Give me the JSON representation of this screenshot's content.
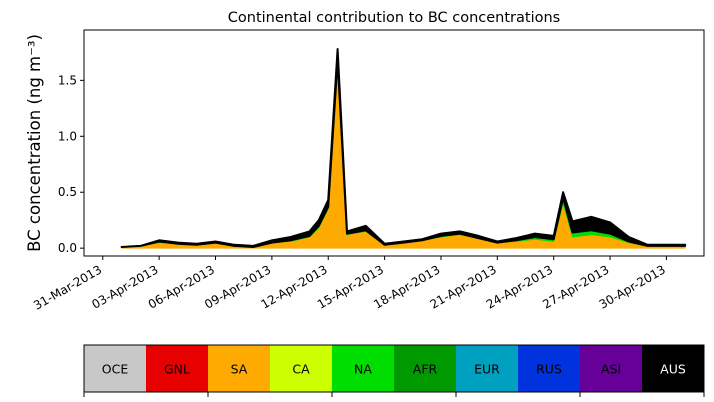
{
  "chart_data": {
    "type": "area",
    "title": "Continental contribution to BC concentrations",
    "ylabel": "BC concentration (ng m⁻³)",
    "xlabel": "",
    "x_range": [
      "2013-03-30",
      "2013-05-02"
    ],
    "ylim": [
      -0.07,
      1.95
    ],
    "y_ticks": [
      0.0,
      0.5,
      1.0,
      1.5
    ],
    "y_tick_labels": [
      "0.0",
      "0.5",
      "1.0",
      "1.5"
    ],
    "x_ticks": [
      "2013-03-31",
      "2013-04-03",
      "2013-04-06",
      "2013-04-09",
      "2013-04-12",
      "2013-04-15",
      "2013-04-18",
      "2013-04-21",
      "2013-04-24",
      "2013-04-27",
      "2013-04-30"
    ],
    "x_tick_labels": [
      "31-Mar-2013",
      "03-Apr-2013",
      "06-Apr-2013",
      "09-Apr-2013",
      "12-Apr-2013",
      "15-Apr-2013",
      "18-Apr-2013",
      "21-Apr-2013",
      "24-Apr-2013",
      "27-Apr-2013",
      "30-Apr-2013"
    ],
    "x": [
      "2013-04-01",
      "2013-04-02",
      "2013-04-03",
      "2013-04-04",
      "2013-04-05",
      "2013-04-06",
      "2013-04-07",
      "2013-04-08",
      "2013-04-09",
      "2013-04-10",
      "2013-04-11",
      "2013-04-11 12:00",
      "2013-04-12",
      "2013-04-12 12:00",
      "2013-04-13",
      "2013-04-14",
      "2013-04-15",
      "2013-04-16",
      "2013-04-17",
      "2013-04-18",
      "2013-04-19",
      "2013-04-20",
      "2013-04-21",
      "2013-04-22",
      "2013-04-23",
      "2013-04-24",
      "2013-04-24 12:00",
      "2013-04-25",
      "2013-04-26",
      "2013-04-27",
      "2013-04-28",
      "2013-04-29",
      "2013-04-30",
      "2013-05-01"
    ],
    "series": [
      {
        "name": "SA",
        "color": "#ffaa00",
        "values": [
          0.01,
          0.02,
          0.05,
          0.04,
          0.03,
          0.05,
          0.02,
          0.01,
          0.05,
          0.06,
          0.1,
          0.18,
          0.35,
          1.65,
          0.12,
          0.15,
          0.03,
          0.05,
          0.07,
          0.1,
          0.12,
          0.09,
          0.05,
          0.06,
          0.08,
          0.06,
          0.4,
          0.1,
          0.12,
          0.1,
          0.05,
          0.02,
          0.02,
          0.02
        ]
      },
      {
        "name": "NA",
        "color": "#00dd00",
        "values": [
          0.0,
          0.0,
          0.01,
          0.0,
          0.0,
          0.0,
          0.0,
          0.0,
          0.0,
          0.01,
          0.01,
          0.02,
          0.02,
          0.03,
          0.01,
          0.01,
          0.0,
          0.0,
          0.0,
          0.01,
          0.01,
          0.0,
          0.0,
          0.01,
          0.02,
          0.02,
          0.05,
          0.04,
          0.04,
          0.03,
          0.01,
          0.0,
          0.0,
          0.0
        ]
      },
      {
        "name": "AUS",
        "color": "#000000",
        "values": [
          0.0,
          0.0,
          0.01,
          0.01,
          0.01,
          0.01,
          0.01,
          0.01,
          0.02,
          0.03,
          0.04,
          0.05,
          0.06,
          0.1,
          0.02,
          0.04,
          0.01,
          0.01,
          0.01,
          0.02,
          0.02,
          0.02,
          0.01,
          0.02,
          0.03,
          0.03,
          0.05,
          0.1,
          0.12,
          0.1,
          0.04,
          0.01,
          0.01,
          0.01
        ]
      }
    ],
    "legend": {
      "placement": "bottom",
      "entries": [
        {
          "label": "OCE",
          "color": "#c8c8c8",
          "text_color": "#000000"
        },
        {
          "label": "GNL",
          "color": "#e60000",
          "text_color": "#000000"
        },
        {
          "label": "SA",
          "color": "#ffaa00",
          "text_color": "#000000"
        },
        {
          "label": "CA",
          "color": "#ccff00",
          "text_color": "#000000"
        },
        {
          "label": "NA",
          "color": "#00dd00",
          "text_color": "#000000"
        },
        {
          "label": "AFR",
          "color": "#009900",
          "text_color": "#000000"
        },
        {
          "label": "EUR",
          "color": "#00a0c0",
          "text_color": "#000000"
        },
        {
          "label": "RUS",
          "color": "#0033dd",
          "text_color": "#000000"
        },
        {
          "label": "ASI",
          "color": "#660099",
          "text_color": "#000000"
        },
        {
          "label": "AUS",
          "color": "#000000",
          "text_color": "#ffffff"
        }
      ]
    },
    "grid": false
  }
}
